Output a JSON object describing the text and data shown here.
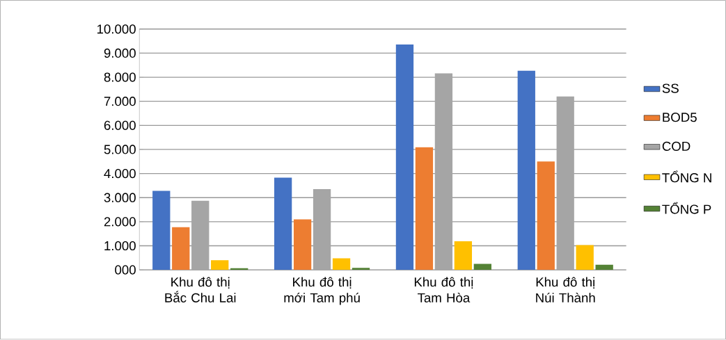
{
  "chart_data": {
    "type": "bar",
    "categories": [
      "Khu đô thị Bắc Chu Lai",
      "Khu đô thị mới Tam phú",
      "Khu đô thị Tam Hòa",
      "Khu đô thị Núi Thành"
    ],
    "series": [
      {
        "name": "SS",
        "color": "#4472c4",
        "values": [
          3280,
          3830,
          9360,
          8270
        ]
      },
      {
        "name": "BOD5",
        "color": "#ed7d31",
        "values": [
          1770,
          2100,
          5090,
          4500
        ]
      },
      {
        "name": "COD",
        "color": "#a5a5a5",
        "values": [
          2870,
          3350,
          8160,
          7200
        ]
      },
      {
        "name": "TỔNG N",
        "color": "#ffc000",
        "values": [
          400,
          480,
          1190,
          1030
        ]
      },
      {
        "name": "TỔNG P",
        "color": "#548235",
        "values": [
          70,
          80,
          250,
          210
        ]
      }
    ],
    "ylim": [
      0,
      10000
    ],
    "yticks": [
      {
        "value": 0,
        "label": "000"
      },
      {
        "value": 1000,
        "label": "1.000"
      },
      {
        "value": 2000,
        "label": "2.000"
      },
      {
        "value": 3000,
        "label": "3.000"
      },
      {
        "value": 4000,
        "label": "4.000"
      },
      {
        "value": 5000,
        "label": "5.000"
      },
      {
        "value": 6000,
        "label": "6.000"
      },
      {
        "value": 7000,
        "label": "7.000"
      },
      {
        "value": 8000,
        "label": "8.000"
      },
      {
        "value": 9000,
        "label": "9.000"
      },
      {
        "value": 10000,
        "label": "10.000"
      }
    ],
    "grid": "y",
    "legend": "right"
  }
}
